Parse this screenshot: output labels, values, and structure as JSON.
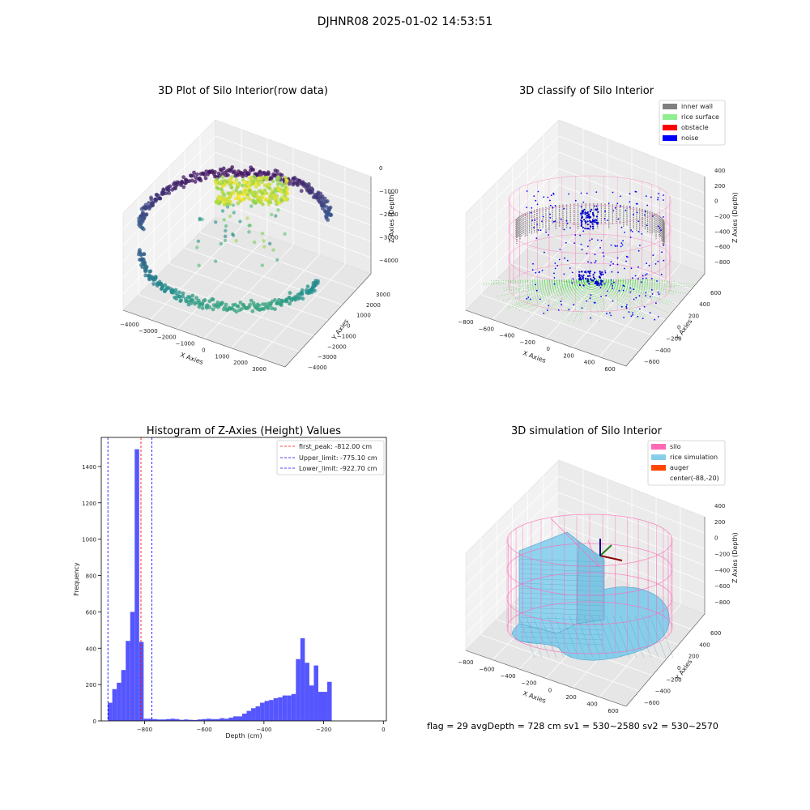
{
  "suptitle": "DJHNR08 2025-01-02 14:53:51",
  "footer": "flag = 29  avgDepth = 728 cm  sv1 = 530~2580  sv2 = 530~2570",
  "chart_data": [
    {
      "type": "scatter",
      "projection": "3d",
      "title": "3D Plot of Silo Interior(row data)",
      "xlabel": "X Axies",
      "ylabel": "Y Axies",
      "zlabel": "Z Axies (Depth)",
      "xticks": [
        "−4000",
        "−3000",
        "−2000",
        "−1000",
        "0",
        "1000",
        "2000",
        "3000"
      ],
      "yticks": [
        "−4000",
        "−3000",
        "−2000",
        "−1000",
        "0",
        "1000",
        "2000",
        "3000"
      ],
      "zticks": [
        "−4000",
        "−3000",
        "−2000",
        "−1000",
        "0"
      ],
      "colormap": "viridis",
      "grid": true
    },
    {
      "type": "scatter",
      "projection": "3d",
      "title": "3D classify of Silo Interior",
      "xlabel": "X Axies",
      "ylabel": "Y Axies",
      "zlabel": "Z Axies (Depth)",
      "xticks": [
        "−800",
        "−600",
        "−400",
        "−200",
        "0",
        "200",
        "400",
        "600"
      ],
      "yticks": [
        "−600",
        "−400",
        "−200",
        "0",
        "200",
        "400",
        "600"
      ],
      "zticks": [
        "−800",
        "−600",
        "−400",
        "−200",
        "0",
        "200",
        "400"
      ],
      "legend": [
        {
          "label": "inner wall",
          "color": "#808080"
        },
        {
          "label": "rice surface",
          "color": "#90ee90"
        },
        {
          "label": "obstacle",
          "color": "#ff0000"
        },
        {
          "label": "noise",
          "color": "#0000ff"
        }
      ],
      "legend_position": "top-right",
      "grid": true
    },
    {
      "type": "bar",
      "subtype": "histogram",
      "title": "Histogram of Z-Axies (Height) Values",
      "xlabel": "Depth (cm)",
      "ylabel": "Frequency",
      "xlim": [
        -945,
        10
      ],
      "ylim": [
        0,
        1560
      ],
      "bin_width": 15,
      "xticks": [
        -800,
        -600,
        -400,
        -200,
        0
      ],
      "xtick_labels": [
        "−800",
        "−600",
        "−400",
        "−200",
        "0"
      ],
      "yticks": [
        0,
        200,
        400,
        600,
        800,
        1000,
        1200,
        1400
      ],
      "color": "#4d4dff",
      "bins": [
        [
          -923,
          100
        ],
        [
          -908,
          175
        ],
        [
          -893,
          210
        ],
        [
          -878,
          280
        ],
        [
          -863,
          440
        ],
        [
          -848,
          600
        ],
        [
          -833,
          1495
        ],
        [
          -818,
          435
        ],
        [
          -803,
          12
        ],
        [
          -788,
          12
        ],
        [
          -773,
          10
        ],
        [
          -758,
          8
        ],
        [
          -743,
          8
        ],
        [
          -728,
          10
        ],
        [
          -713,
          12
        ],
        [
          -698,
          10
        ],
        [
          -683,
          6
        ],
        [
          -668,
          8
        ],
        [
          -653,
          6
        ],
        [
          -638,
          5
        ],
        [
          -623,
          8
        ],
        [
          -608,
          10
        ],
        [
          -593,
          12
        ],
        [
          -578,
          10
        ],
        [
          -563,
          10
        ],
        [
          -548,
          15
        ],
        [
          -533,
          12
        ],
        [
          -518,
          18
        ],
        [
          -503,
          25
        ],
        [
          -488,
          25
        ],
        [
          -473,
          40
        ],
        [
          -458,
          55
        ],
        [
          -443,
          70
        ],
        [
          -428,
          80
        ],
        [
          -413,
          100
        ],
        [
          -398,
          110
        ],
        [
          -383,
          115
        ],
        [
          -368,
          125
        ],
        [
          -353,
          130
        ],
        [
          -338,
          140
        ],
        [
          -323,
          140
        ],
        [
          -308,
          148
        ],
        [
          -293,
          340
        ],
        [
          -278,
          455
        ],
        [
          -263,
          320
        ],
        [
          -248,
          195
        ],
        [
          -233,
          305
        ],
        [
          -218,
          160
        ],
        [
          -203,
          160
        ],
        [
          -188,
          215
        ]
      ],
      "vlines": [
        {
          "x": -812.0,
          "label": "first_peak: -812.00 cm",
          "color": "#ff0000"
        },
        {
          "x": -775.1,
          "label": "Upper_limit: -775.10 cm",
          "color": "#0000ff"
        },
        {
          "x": -922.7,
          "label": "Lower_limit: -922.70 cm",
          "color": "#0000ff"
        }
      ],
      "legend_position": "top-right"
    },
    {
      "type": "surface",
      "projection": "3d",
      "title": "3D simulation of Silo Interior",
      "xlabel": "X Axies",
      "ylabel": "Y Axies",
      "zlabel": "Z Axies (Depth)",
      "xticks": [
        "−800",
        "−600",
        "−400",
        "−200",
        "0",
        "200",
        "400",
        "600"
      ],
      "yticks": [
        "−600",
        "−400",
        "−200",
        "0",
        "200",
        "400",
        "600"
      ],
      "zticks": [
        "−800",
        "−600",
        "−400",
        "−200",
        "0",
        "200",
        "400"
      ],
      "legend": [
        {
          "label": "silo",
          "color": "#ff69b4"
        },
        {
          "label": "rice simulation",
          "color": "#87ceeb"
        },
        {
          "label": "auger",
          "color": "#ff4500"
        },
        {
          "label": "center(-88,-20)",
          "color": "none"
        }
      ],
      "legend_position": "top-right",
      "grid": true
    }
  ]
}
